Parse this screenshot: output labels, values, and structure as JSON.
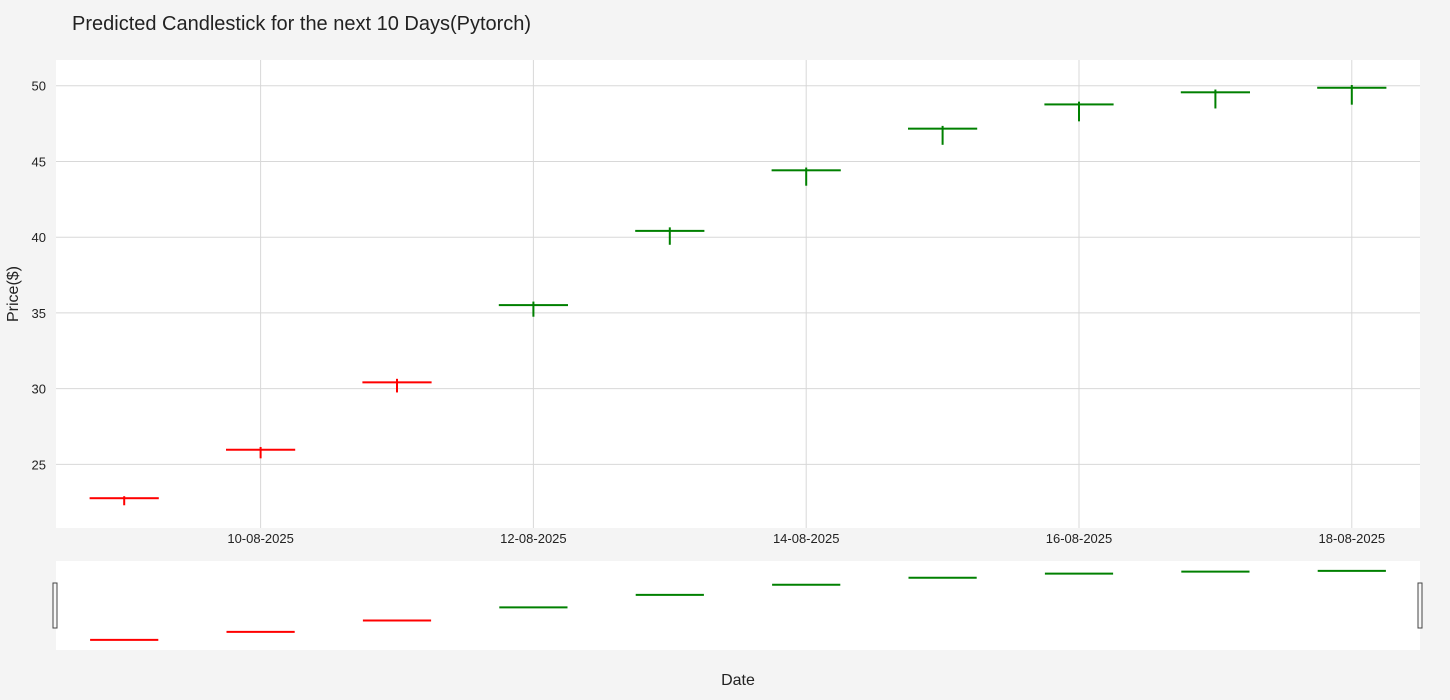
{
  "chart_data": {
    "type": "candlestick",
    "title": "Predicted Candlestick for the next 10 Days(Pytorch)",
    "xlabel": "Date",
    "ylabel": "Price($)",
    "ylim": [
      20.8,
      51.7
    ],
    "yticks": [
      25,
      30,
      35,
      40,
      45,
      50
    ],
    "xticks": [
      "10-08-2025",
      "12-08-2025",
      "14-08-2025",
      "16-08-2025",
      "18-08-2025"
    ],
    "grid": true,
    "rangeslider": true,
    "increasing_color": "#008000",
    "decreasing_color": "#ff0000",
    "x": [
      "09-08-2025",
      "10-08-2025",
      "11-08-2025",
      "12-08-2025",
      "13-08-2025",
      "14-08-2025",
      "15-08-2025",
      "16-08-2025",
      "17-08-2025",
      "18-08-2025"
    ],
    "open": [
      22.75,
      26.0,
      30.45,
      35.5,
      40.4,
      44.4,
      47.15,
      48.75,
      49.55,
      49.85
    ],
    "high": [
      22.9,
      26.15,
      30.65,
      35.75,
      40.65,
      44.6,
      47.35,
      48.95,
      49.75,
      50.05
    ],
    "low": [
      22.3,
      25.4,
      29.75,
      34.75,
      39.5,
      43.4,
      46.1,
      47.65,
      48.5,
      48.75
    ],
    "close": [
      22.8,
      25.95,
      30.4,
      35.55,
      40.45,
      44.45,
      47.2,
      48.8,
      49.6,
      49.9
    ]
  }
}
